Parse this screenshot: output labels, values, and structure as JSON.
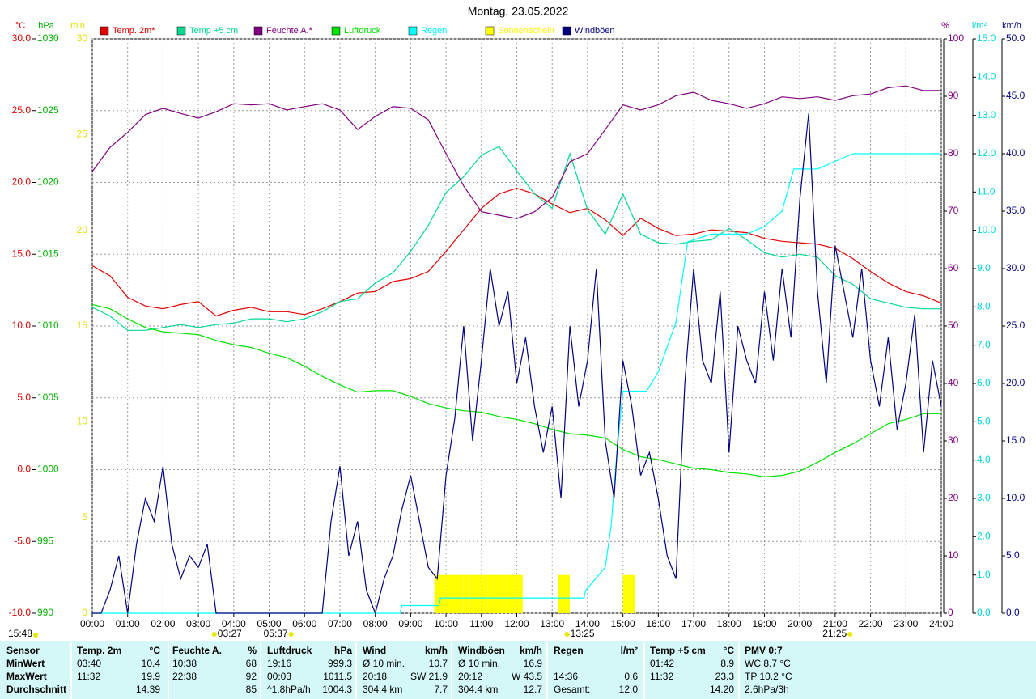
{
  "chart_data": {
    "type": "line",
    "title": "Montag, 23.05.2022",
    "xlim": [
      0,
      24
    ],
    "xticks": [
      {
        "value": 0,
        "label": "00:00"
      },
      {
        "value": 1,
        "label": "01:00"
      },
      {
        "value": 2,
        "label": "02:00"
      },
      {
        "value": 3,
        "label": "03:00"
      },
      {
        "value": 4,
        "label": "04:00"
      },
      {
        "value": 5,
        "label": "05:00"
      },
      {
        "value": 6,
        "label": "06:00"
      },
      {
        "value": 7,
        "label": "07:00"
      },
      {
        "value": 8,
        "label": "08:00"
      },
      {
        "value": 9,
        "label": "09:00"
      },
      {
        "value": 10,
        "label": "10:00"
      },
      {
        "value": 11,
        "label": "11:00"
      },
      {
        "value": 12,
        "label": "12:00"
      },
      {
        "value": 13,
        "label": "13:00"
      },
      {
        "value": 14,
        "label": "14:00"
      },
      {
        "value": 15,
        "label": "15:00"
      },
      {
        "value": 16,
        "label": "16:00"
      },
      {
        "value": 17,
        "label": "17:00"
      },
      {
        "value": 18,
        "label": "18:00"
      },
      {
        "value": 19,
        "label": "19:00"
      },
      {
        "value": 20,
        "label": "20:00"
      },
      {
        "value": 21,
        "label": "21:00"
      },
      {
        "value": 22,
        "label": "22:00"
      },
      {
        "value": 23,
        "label": "23:00"
      },
      {
        "value": 24,
        "label": "24:00"
      }
    ],
    "grid": true,
    "axes": [
      {
        "label": "°C",
        "color": "#e00000",
        "lim": [
          -10,
          30
        ],
        "ticks": [
          {
            "value": 30,
            "label": "30.0"
          },
          {
            "value": 25,
            "label": "25.0"
          },
          {
            "value": 20,
            "label": "20.0"
          },
          {
            "value": 15,
            "label": "15.0"
          },
          {
            "value": 10,
            "label": "10.0"
          },
          {
            "value": 5,
            "label": "5.0"
          },
          {
            "value": 0,
            "label": "0.0"
          },
          {
            "value": -5,
            "label": "-5.0"
          },
          {
            "value": -10,
            "label": "-10.0"
          }
        ]
      },
      {
        "label": "hPa",
        "color": "#00b000",
        "lim": [
          990,
          1030
        ],
        "ticks": [
          1030,
          1025,
          1020,
          1015,
          1010,
          1005,
          1000,
          995,
          990
        ]
      },
      {
        "label": "min",
        "color": "#e0e000",
        "lim": [
          0,
          30
        ],
        "ticks": [
          30,
          25,
          20,
          15,
          10,
          5,
          0
        ]
      },
      {
        "label": "%",
        "color": "#800080",
        "lim": [
          0,
          100
        ],
        "ticks": [
          100,
          90,
          80,
          70,
          60,
          50,
          40,
          30,
          20,
          10,
          0
        ]
      },
      {
        "label": "l/m²",
        "color": "#00d8d8",
        "lim": [
          0,
          15
        ],
        "ticks": [
          {
            "value": 15,
            "label": "15.0"
          },
          {
            "value": 14,
            "label": "14.0"
          },
          {
            "value": 13,
            "label": "13.0"
          },
          {
            "value": 12,
            "label": "12.0"
          },
          {
            "value": 11,
            "label": "11.0"
          },
          {
            "value": 10,
            "label": "10.0"
          },
          {
            "value": 9,
            "label": "9.0"
          },
          {
            "value": 8,
            "label": "8.0"
          },
          {
            "value": 7,
            "label": "7.0"
          },
          {
            "value": 6,
            "label": "6.0"
          },
          {
            "value": 5,
            "label": "5.0"
          },
          {
            "value": 4,
            "label": "4.0"
          },
          {
            "value": 3,
            "label": "3.0"
          },
          {
            "value": 2,
            "label": "2.0"
          },
          {
            "value": 1,
            "label": "1.0"
          },
          {
            "value": 0,
            "label": "0.0"
          }
        ]
      },
      {
        "label": "km/h",
        "color": "#000080",
        "lim": [
          0,
          50
        ],
        "ticks": [
          {
            "value": 50,
            "label": "50.0"
          },
          {
            "value": 45,
            "label": "45.0"
          },
          {
            "value": 40,
            "label": "40.0"
          },
          {
            "value": 35,
            "label": "35.0"
          },
          {
            "value": 30,
            "label": "30.0"
          },
          {
            "value": 25,
            "label": "25.0"
          },
          {
            "value": 20,
            "label": "20.0"
          },
          {
            "value": 15,
            "label": "15.0"
          },
          {
            "value": 10,
            "label": "10.0"
          },
          {
            "value": 5,
            "label": "5.0"
          },
          {
            "value": 0,
            "label": "0.0"
          }
        ]
      }
    ],
    "x": [
      0,
      0.5,
      1,
      1.5,
      2,
      2.5,
      3,
      3.5,
      4,
      4.5,
      5,
      5.5,
      6,
      6.5,
      7,
      7.5,
      8,
      8.5,
      9,
      9.5,
      10,
      10.5,
      11,
      11.5,
      12,
      12.5,
      13,
      13.5,
      14,
      14.5,
      15,
      15.5,
      16,
      16.5,
      17,
      17.5,
      18,
      18.5,
      19,
      19.5,
      20,
      20.5,
      21,
      21.5,
      22,
      22.5,
      23,
      23.5,
      24
    ],
    "series": [
      {
        "name": "Temp. 2m*",
        "color": "#e00000",
        "axis": 0,
        "type": "line",
        "values": [
          14.2,
          13.5,
          12.0,
          11.4,
          11.2,
          11.5,
          11.7,
          10.7,
          11.1,
          11.3,
          11.0,
          11.0,
          10.8,
          11.2,
          11.7,
          12.3,
          12.4,
          13.1,
          13.3,
          13.8,
          15.2,
          16.7,
          18.2,
          19.2,
          19.6,
          19.2,
          18.5,
          17.9,
          18.2,
          17.4,
          16.3,
          17.5,
          16.8,
          16.3,
          16.4,
          16.7,
          16.6,
          16.5,
          16.1,
          15.9,
          15.8,
          15.7,
          15.4,
          14.7,
          13.8,
          13.0,
          12.4,
          12.1,
          11.6
        ]
      },
      {
        "name": "Temp +5 cm",
        "color": "#00d890",
        "axis": 0,
        "type": "line",
        "values": [
          11.3,
          10.7,
          9.7,
          9.7,
          9.9,
          10.1,
          9.9,
          10.1,
          10.2,
          10.5,
          10.5,
          10.3,
          10.5,
          11.0,
          11.7,
          11.9,
          13.0,
          13.7,
          15.2,
          17.0,
          19.3,
          20.4,
          21.9,
          22.5,
          20.8,
          19.2,
          18.2,
          22.0,
          18.1,
          16.4,
          19.2,
          16.4,
          15.8,
          15.7,
          15.9,
          16.0,
          16.8,
          16.0,
          15.1,
          14.8,
          15.0,
          14.8,
          13.5,
          12.9,
          11.9,
          11.6,
          11.3,
          11.2,
          11.2
        ]
      },
      {
        "name": "Feuchte A.*",
        "color": "#800080",
        "axis": 3,
        "type": "line",
        "values": [
          76.9,
          81.1,
          83.7,
          86.8,
          87.9,
          87.0,
          86.2,
          87.3,
          88.7,
          88.5,
          88.7,
          87.6,
          88.2,
          88.7,
          87.6,
          84.2,
          86.5,
          88.2,
          87.9,
          85.9,
          80.0,
          74.4,
          69.9,
          69.3,
          68.7,
          69.9,
          72.4,
          78.6,
          80.0,
          84.2,
          88.5,
          87.6,
          88.5,
          90.1,
          90.7,
          89.3,
          88.7,
          87.9,
          88.7,
          89.9,
          89.6,
          89.9,
          89.3,
          90.1,
          90.4,
          91.5,
          91.8,
          91.0,
          91.0
        ]
      },
      {
        "name": "Luftdruck",
        "color": "#00e000",
        "axis": 1,
        "type": "line",
        "values": [
          1011.5,
          1011.2,
          1010.5,
          1009.9,
          1009.6,
          1009.5,
          1009.4,
          1009.0,
          1008.7,
          1008.5,
          1008.1,
          1007.8,
          1007.2,
          1006.5,
          1005.9,
          1005.4,
          1005.5,
          1005.5,
          1005.1,
          1004.6,
          1004.3,
          1004.1,
          1004.0,
          1003.7,
          1003.5,
          1003.2,
          1002.8,
          1002.5,
          1002.4,
          1002.2,
          1001.4,
          1000.9,
          1000.7,
          1000.4,
          1000.1,
          1000.0,
          999.8,
          999.7,
          999.5,
          999.6,
          999.9,
          1000.5,
          1001.2,
          1001.8,
          1002.5,
          1003.2,
          1003.5,
          1003.9,
          1003.9
        ]
      },
      {
        "name": "Regen",
        "color": "#00ffff",
        "axis": 4,
        "type": "line",
        "x": [
          0,
          8.7,
          8.75,
          9.8,
          9.85,
          13.0,
          13.9,
          13.95,
          14.5,
          14.67,
          14.83,
          15.0,
          15.67,
          16.0,
          16.5,
          16.83,
          17.5,
          18.5,
          19.0,
          19.5,
          19.83,
          20.5,
          21.0,
          21.5,
          24
        ],
        "values": [
          0,
          0,
          0.2,
          0.2,
          0.4,
          0.4,
          0.4,
          0.6,
          1.2,
          2.3,
          4.2,
          5.8,
          5.8,
          6.3,
          7.6,
          9.7,
          9.9,
          9.9,
          10.1,
          10.5,
          11.6,
          11.6,
          11.8,
          12.0,
          12.0
        ]
      },
      {
        "name": "Sonnenschein",
        "color": "#ffff00",
        "axis": 2,
        "type": "bar",
        "x": [
          9.67,
          9.83,
          10.0,
          10.17,
          10.33,
          10.5,
          10.67,
          10.83,
          11.0,
          11.17,
          11.33,
          11.5,
          11.67,
          11.83,
          12.0,
          13.17,
          13.33,
          15.0,
          15.17
        ],
        "values": [
          2,
          2,
          2,
          2,
          2,
          2,
          2,
          2,
          2,
          2,
          2,
          2,
          2,
          2,
          2,
          2,
          2,
          2,
          2
        ]
      },
      {
        "name": "Windböen",
        "color": "#000080",
        "axis": 5,
        "type": "line",
        "x": [
          0,
          0.25,
          0.5,
          0.75,
          1,
          1.25,
          1.5,
          1.75,
          2,
          2.25,
          2.5,
          2.75,
          3,
          3.25,
          3.5,
          3.75,
          4,
          4.25,
          4.5,
          4.75,
          5,
          5.25,
          5.5,
          5.75,
          6,
          6.25,
          6.5,
          6.75,
          7,
          7.25,
          7.5,
          7.75,
          8,
          8.25,
          8.5,
          8.75,
          9,
          9.25,
          9.5,
          9.75,
          10,
          10.25,
          10.5,
          10.75,
          11,
          11.25,
          11.5,
          11.75,
          12,
          12.25,
          12.5,
          12.75,
          13,
          13.25,
          13.5,
          13.75,
          14,
          14.25,
          14.5,
          14.75,
          15,
          15.25,
          15.5,
          15.75,
          16,
          16.25,
          16.5,
          16.75,
          17,
          17.25,
          17.5,
          17.75,
          18,
          18.25,
          18.5,
          18.75,
          19,
          19.25,
          19.5,
          19.75,
          20,
          20.25,
          20.5,
          20.75,
          21,
          21.25,
          21.5,
          21.75,
          22,
          22.25,
          22.5,
          22.75,
          23,
          23.25,
          23.5,
          23.75,
          24
        ],
        "values": [
          0,
          0,
          2,
          5,
          0,
          6,
          10,
          8,
          12.8,
          6,
          3,
          5,
          4,
          6,
          0,
          0,
          0,
          0,
          0,
          0,
          0,
          0,
          0,
          0,
          0,
          0,
          0,
          8,
          12.8,
          5,
          8,
          2,
          0,
          3,
          5,
          9,
          12,
          8,
          4,
          3,
          12,
          17,
          25,
          15,
          22,
          30,
          25,
          28,
          20,
          24,
          18,
          14,
          18,
          10,
          25,
          18,
          22,
          30,
          15,
          10,
          22,
          18,
          12,
          14,
          10,
          5,
          3,
          20,
          30,
          22,
          20,
          28,
          14,
          25,
          22,
          20,
          28,
          22,
          30,
          24,
          36,
          43.5,
          28,
          20,
          32,
          28,
          24,
          30,
          22,
          18,
          24,
          16,
          20,
          26,
          14,
          22,
          18
        ]
      }
    ],
    "time_marks": [
      {
        "x": 3.45,
        "label": "03:27"
      },
      {
        "x": 5.62,
        "label": "05:37"
      },
      {
        "x": 13.42,
        "label": "13:25"
      },
      {
        "x": 21.42,
        "label": "21:25"
      }
    ],
    "day_length": "15:48"
  },
  "stats": {
    "header": "Sensor",
    "row_labels": [
      "MinWert",
      "MaxWert",
      "Durchschnitt"
    ],
    "columns": [
      {
        "name": "Temp. 2m",
        "unit": "°C",
        "min": {
          "time": "03:40",
          "value": "10.4"
        },
        "max": {
          "time": "11:32",
          "value": "19.9"
        },
        "avg": {
          "value": "14.39"
        }
      },
      {
        "name": "Feuchte A.",
        "unit": "%",
        "min": {
          "time": "10:38",
          "value": "68"
        },
        "max": {
          "time": "22:38",
          "value": "92"
        },
        "avg": {
          "value": "85"
        }
      },
      {
        "name": "Luftdruck",
        "unit": "hPa",
        "min": {
          "time": "19:16",
          "value": "999.3"
        },
        "max": {
          "time": "00:03",
          "value": "1011.5"
        },
        "avg": {
          "time": "^1.8hPa/h",
          "value": "1004.3"
        }
      },
      {
        "name": "Wind",
        "unit": "km/h",
        "min": {
          "time": "Ø 10 min.",
          "value": "10.7"
        },
        "max": {
          "time": "20:18",
          "value": "SW 21.9"
        },
        "avg": {
          "time": "304.4 km",
          "value": "7.7"
        }
      },
      {
        "name": "Windböen",
        "unit": "km/h",
        "min": {
          "time": "Ø 10 min.",
          "value": "16.9"
        },
        "max": {
          "time": "20:12",
          "value": "W 43.5"
        },
        "avg": {
          "time": "304.4 km",
          "value": "12.7"
        }
      },
      {
        "name": "Regen",
        "unit": "l/m²",
        "max": {
          "time": "14:36",
          "value": "0.6"
        },
        "avg": {
          "time": "Gesamt:",
          "value": "12.0"
        }
      },
      {
        "name": "Temp +5 cm",
        "unit": "°C",
        "min": {
          "time": "01:42",
          "value": "8.9"
        },
        "max": {
          "time": "11:32",
          "value": "23.3"
        },
        "avg": {
          "value": "14.20"
        }
      },
      {
        "name": "PMV 0:7",
        "min": {
          "time": "WC 8.7 °C"
        },
        "max": {
          "time": "TP 10.2 °C"
        },
        "avg": {
          "time": "2.6hPa/3h"
        }
      }
    ]
  }
}
